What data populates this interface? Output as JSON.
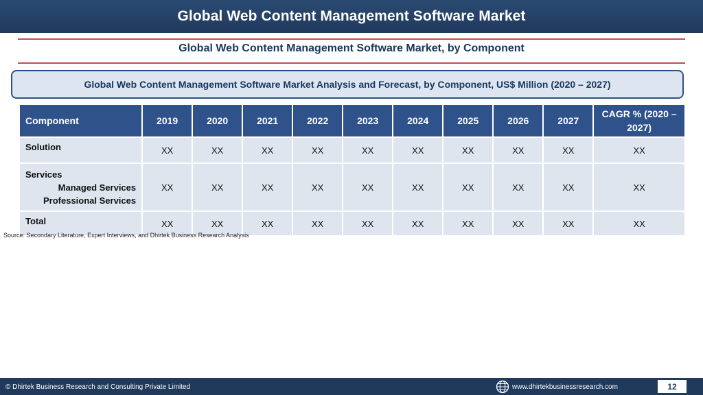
{
  "header": {
    "title": "Global Web Content Management Software Market"
  },
  "subtitle": "Global Web Content Management Software Market, by Component",
  "banner": "Global Web Content Management Software Market Analysis and Forecast, by Component, US$ Million (2020 – 2027)",
  "table": {
    "headers": [
      "Component",
      "2019",
      "2020",
      "2021",
      "2022",
      "2023",
      "2024",
      "2025",
      "2026",
      "2027"
    ],
    "cagr_header_line1": "CAGR % (2020 –",
    "cagr_header_line2": "2027)",
    "rows": [
      {
        "label": "Solution",
        "values": [
          "XX",
          "XX",
          "XX",
          "XX",
          "XX",
          "XX",
          "XX",
          "XX",
          "XX",
          "XX"
        ]
      },
      {
        "label": "Services",
        "sub": [
          "Managed Services",
          "Professional Services"
        ],
        "values": [
          "XX",
          "XX",
          "XX",
          "XX",
          "XX",
          "XX",
          "XX",
          "XX",
          "XX",
          "XX"
        ]
      },
      {
        "label": "Total",
        "values": [
          "XX",
          "XX",
          "XX",
          "XX",
          "XX",
          "XX",
          "XX",
          "XX",
          "XX",
          "XX"
        ]
      }
    ]
  },
  "source": "Source: Secondary Literature, Expert Interviews, and Dhirtek Business Research Analysis",
  "footer": {
    "copyright": "© Dhirtek Business Research and Consulting Private Limited",
    "website": "www.dhirtekbusinessresearch.com",
    "page_number": "12",
    "icon": "globe-icon"
  },
  "colors": {
    "header_bg": "#203a5c",
    "table_header_bg": "#2e5289",
    "table_cell_bg": "#dfe5ef",
    "rule_red": "#c0504d",
    "banner_border": "#2d5088"
  }
}
